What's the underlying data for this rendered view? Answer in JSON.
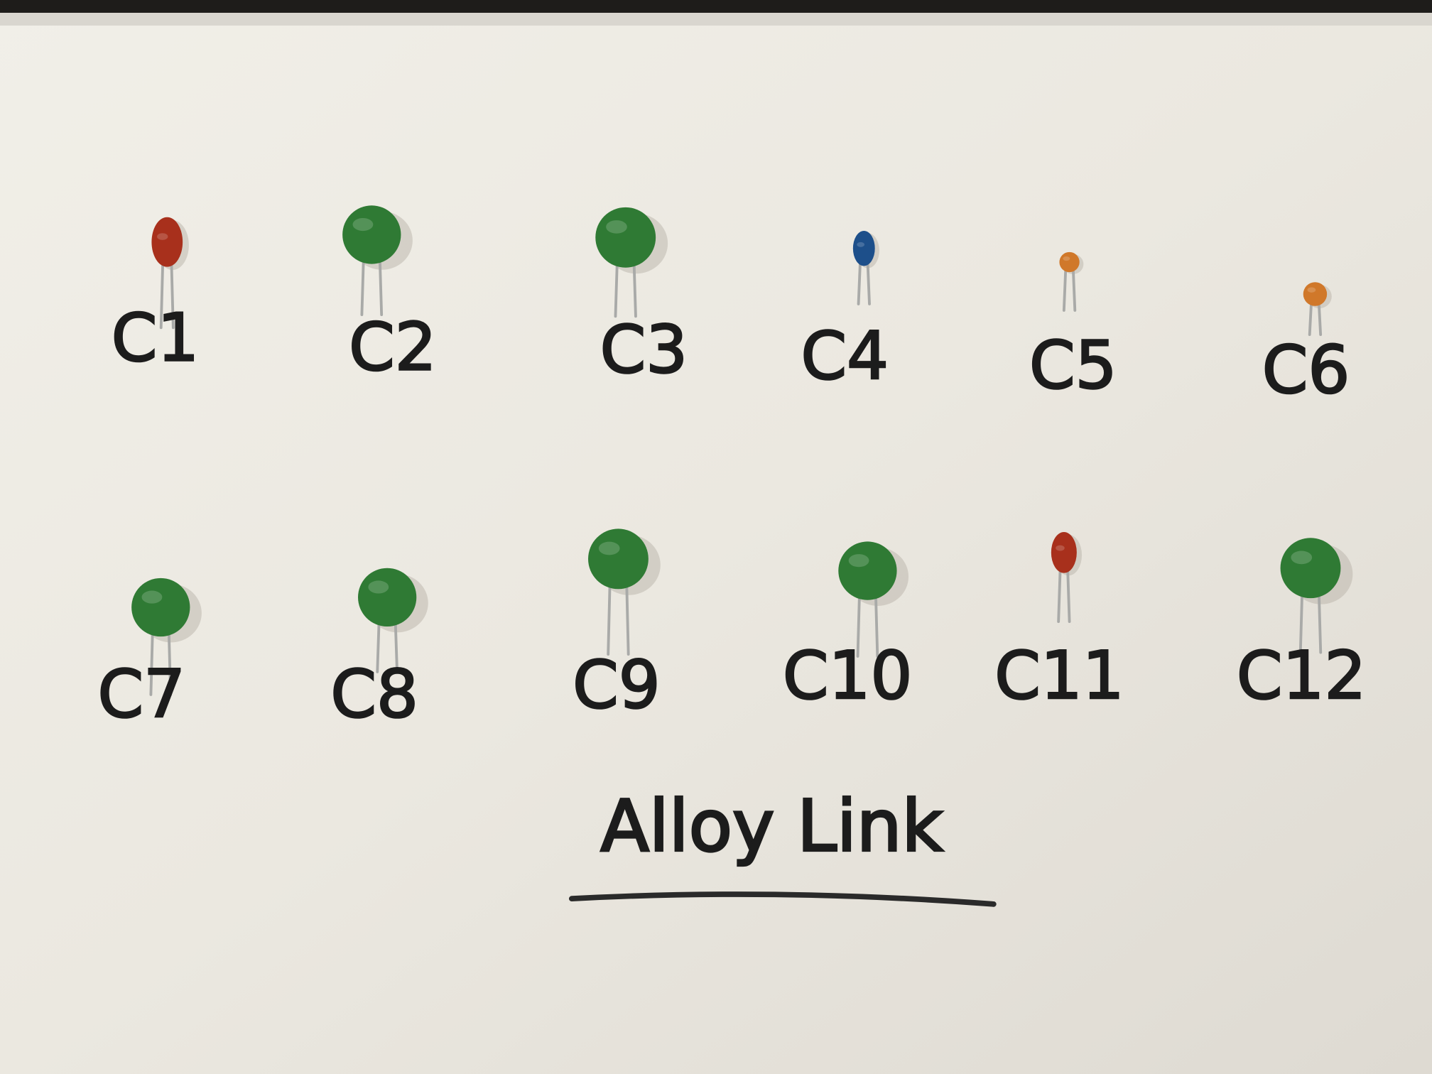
{
  "labels": [
    "C1",
    "C2",
    "C3",
    "C4",
    "C5",
    "C6",
    "C7",
    "C8",
    "C9",
    "C10",
    "C11",
    "C12"
  ],
  "caption": "Alloy Link"
}
